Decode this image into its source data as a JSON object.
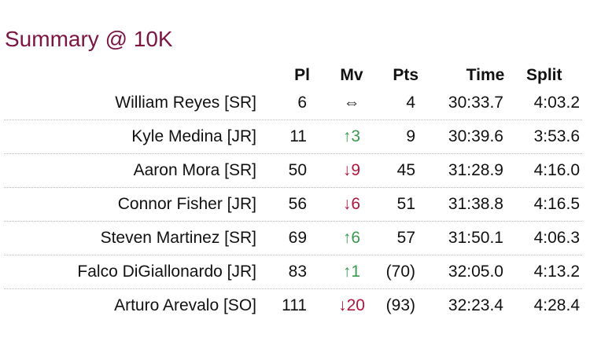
{
  "title": "Summary @ 10K",
  "table": {
    "headers": [
      "Pl",
      "Mv",
      "Pts",
      "Time",
      "Split"
    ],
    "rows": [
      [
        "William Reyes [SR]",
        "6",
        "⇔",
        "4",
        "30:33.7",
        "4:03.2"
      ],
      [
        "Kyle Medina [JR]",
        "11",
        "↑3",
        "9",
        "30:39.6",
        "3:53.6"
      ],
      [
        "Aaron Mora [SR]",
        "50",
        "↓9",
        "45",
        "31:28.9",
        "4:16.0"
      ],
      [
        "Connor Fisher [JR]",
        "56",
        "↓6",
        "51",
        "31:38.8",
        "4:16.5"
      ],
      [
        "Steven Martinez [SR]",
        "69",
        "↑6",
        "57",
        "31:50.1",
        "4:06.3"
      ],
      [
        "Falco DiGiallonardo [JR]",
        "83",
        "↑1",
        "(70)",
        "32:05.0",
        "4:13.2"
      ],
      [
        "Arturo Arevalo [SO]",
        "111",
        "↓20",
        "(93)",
        "32:23.4",
        "4:28.4"
      ]
    ]
  }
}
